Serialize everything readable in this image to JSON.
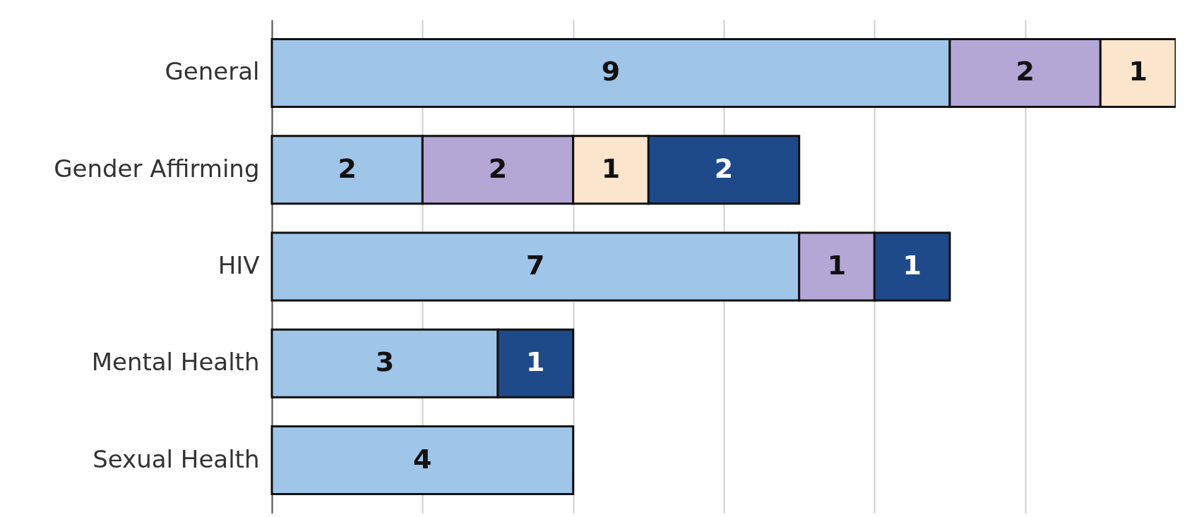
{
  "chart_data": {
    "type": "bar",
    "orientation": "horizontal",
    "stacked": true,
    "data_labels": true,
    "grid": "x",
    "tick_labels": "y",
    "categories": [
      "General",
      "Gender Affirming",
      "HIV",
      "Mental Health",
      "Sexual Health"
    ],
    "xlim": [
      0,
      12
    ],
    "xticks": [
      {
        "value": 0,
        "label": null
      },
      {
        "value": 2,
        "label": null
      },
      {
        "value": 4,
        "label": null
      },
      {
        "value": 6,
        "label": null
      },
      {
        "value": 8,
        "label": null
      },
      {
        "value": 10,
        "label": null
      }
    ],
    "series": [
      {
        "color": "#9fc5e8",
        "values": [
          9,
          2,
          7,
          3,
          4
        ]
      },
      {
        "color": "#b4a7d6",
        "values": [
          2,
          2,
          1,
          null,
          null
        ]
      },
      {
        "color": "#fce5cd",
        "values": [
          1,
          1,
          null,
          null,
          null
        ]
      },
      {
        "color": "#1f4a8a",
        "values": [
          null,
          2,
          1,
          1,
          null
        ]
      }
    ]
  }
}
